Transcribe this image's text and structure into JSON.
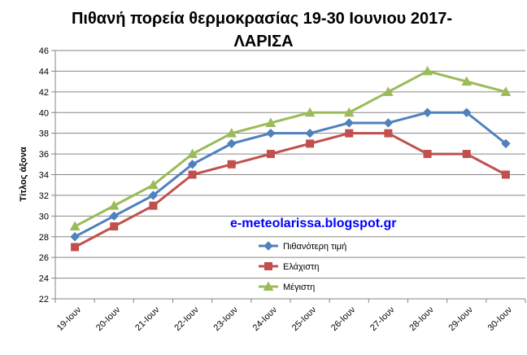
{
  "chart_data": {
    "type": "line",
    "title_lines": [
      "Πιθανή πορεία θερμοκρασίας 19-30 Ιουνιου 2017-",
      "ΛΑΡΙΣΑ"
    ],
    "xlabel": "",
    "ylabel": "Τίτλος άξονα",
    "ylim": [
      22,
      46
    ],
    "yticks": [
      "22",
      "24",
      "26",
      "28",
      "30",
      "32",
      "34",
      "36",
      "38",
      "40",
      "42",
      "44",
      "46"
    ],
    "grid": true,
    "legend_position": "right",
    "categories": [
      "19-Ιουν",
      "20-Ιουν",
      "21-Ιουν",
      "22-Ιουν",
      "23-Ιουν",
      "24-Ιουν",
      "25-Ιουν",
      "26-Ιουν",
      "27-Ιουν",
      "28-Ιουν",
      "29-Ιουν",
      "30-Ιουν"
    ],
    "series": [
      {
        "name": "Πιθανότερη τιμή",
        "color": "#4f81bd",
        "marker": "diamond",
        "values": [
          28,
          30,
          32,
          35,
          37,
          38,
          38,
          39,
          39,
          40,
          40,
          37
        ]
      },
      {
        "name": "Ελάχιστη",
        "color": "#c0504d",
        "marker": "square",
        "values": [
          27,
          29,
          31,
          34,
          35,
          36,
          37,
          38,
          38,
          36,
          36,
          34
        ]
      },
      {
        "name": "Μέγιστη",
        "color": "#9bbb59",
        "marker": "triangle",
        "values": [
          29,
          31,
          33,
          36,
          38,
          39,
          40,
          40,
          42,
          44,
          43,
          42
        ]
      }
    ],
    "annotation": "e-meteolarissa.blogspot.gr"
  }
}
